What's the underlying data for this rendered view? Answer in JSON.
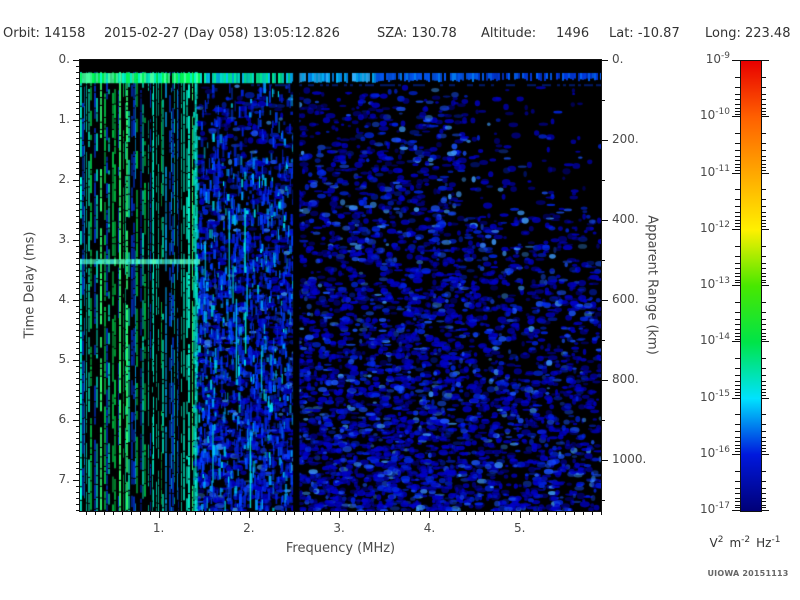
{
  "header": {
    "orbit": "Orbit: 14158",
    "datetime": "2015-02-27 (Day 058) 13:05:12.826",
    "sza": "SZA: 130.78",
    "altitude_label": "Altitude:",
    "altitude_value": "1496",
    "lat": "Lat: -10.87",
    "long": "Long: 223.48"
  },
  "credit": "UIOWA 20151113",
  "chart_data": {
    "type": "heatmap",
    "subtype": "radar-sounder-ionogram-spectrogram",
    "xlabel": "Frequency (MHz)",
    "ylabel": "Time Delay (ms)",
    "y2label": "Apparent Range (km)",
    "x_range_mhz": [
      0.13,
      5.9
    ],
    "y_range_ms": [
      0,
      7.51
    ],
    "y_direction": "down",
    "y2_range_km": [
      0,
      1127
    ],
    "x_ticks": [
      {
        "value": 1,
        "label": "1."
      },
      {
        "value": 2,
        "label": "2."
      },
      {
        "value": 3,
        "label": "3."
      },
      {
        "value": 4,
        "label": "4."
      },
      {
        "value": 5,
        "label": "5."
      }
    ],
    "x_minor_step_mhz": 0.1,
    "y_ticks": [
      {
        "value": 0,
        "label": "0."
      },
      {
        "value": 1,
        "label": "1."
      },
      {
        "value": 2,
        "label": "2."
      },
      {
        "value": 3,
        "label": "3."
      },
      {
        "value": 4,
        "label": "4."
      },
      {
        "value": 5,
        "label": "5."
      },
      {
        "value": 6,
        "label": "6."
      },
      {
        "value": 7,
        "label": "7."
      }
    ],
    "y_minor_step_ms": 0.1,
    "y2_ticks": [
      {
        "value": 0,
        "label": "0."
      },
      {
        "value": 200,
        "label": "200."
      },
      {
        "value": 400,
        "label": "400."
      },
      {
        "value": 600,
        "label": "600."
      },
      {
        "value": 800,
        "label": "800."
      },
      {
        "value": 1000,
        "label": "1000."
      }
    ],
    "y2_minor_step_km": 100,
    "colorbar": {
      "scale": "log",
      "value_min": "1e-17",
      "value_max": "1e-9",
      "tick_labels": [
        {
          "base": "10",
          "exp": "-9"
        },
        {
          "base": "10",
          "exp": "-10"
        },
        {
          "base": "10",
          "exp": "-11"
        },
        {
          "base": "10",
          "exp": "-12"
        },
        {
          "base": "10",
          "exp": "-13"
        },
        {
          "base": "10",
          "exp": "-14"
        },
        {
          "base": "10",
          "exp": "-15"
        },
        {
          "base": "10",
          "exp": "-16"
        },
        {
          "base": "10",
          "exp": "-17"
        }
      ],
      "minor_ticks_per_decade": [
        2,
        3,
        4,
        5,
        6,
        7,
        8,
        9
      ],
      "stops": [
        {
          "exp": -9,
          "color": "#e80000"
        },
        {
          "exp": -10,
          "color": "#ff6000"
        },
        {
          "exp": -11,
          "color": "#ffa800"
        },
        {
          "exp": -12,
          "color": "#fff000"
        },
        {
          "exp": -13,
          "color": "#48e800"
        },
        {
          "exp": -14,
          "color": "#00e448"
        },
        {
          "exp": -15,
          "color": "#00e2ff"
        },
        {
          "exp": -16,
          "color": "#0018dd"
        },
        {
          "exp": -17,
          "color": "#000078"
        }
      ],
      "unit_parts": [
        {
          "base": "V",
          "exp": "2"
        },
        {
          "base": "m",
          "exp": "-2"
        },
        {
          "base": "Hz",
          "exp": "-1"
        }
      ]
    },
    "features": {
      "seed": 42,
      "description": "Black background spectrogram. Top ~0.2 ms is black; a bright horizontal surface/plasma band spans all frequencies at ~0.2-0.37 ms (green-cyan at low frequency fading to faint blue at high frequency). Below ~1.4 MHz dense vertical electron-plasma-oscillation stripes (green/cyan/blue) span the full delay range, with a bright cyan horizontal echo at ~3.35 ms. A bright cyan vertical stripe sits at ~1.4 MHz. Diffuse dark-blue speckle noise fills mid-to-high frequencies, denser at long delays, with a narrow black data gap column at ~2.5 MHz and sparser noise in the upper right.",
      "top_black_strip_ms": [
        0,
        0.2
      ],
      "surface_band_ms": [
        0.2,
        0.37
      ],
      "plasma_stripe_region_mhz": [
        0.13,
        1.42
      ],
      "bright_boundary_stripe_mhz": 1.4,
      "horizontal_echo_ms": 3.35,
      "horizontal_echo_extent_mhz": [
        0.13,
        1.42
      ],
      "dark_gap_mhz": [
        2.49,
        2.56
      ],
      "diffuse_noise_region_mhz": [
        1.42,
        5.9
      ]
    }
  }
}
